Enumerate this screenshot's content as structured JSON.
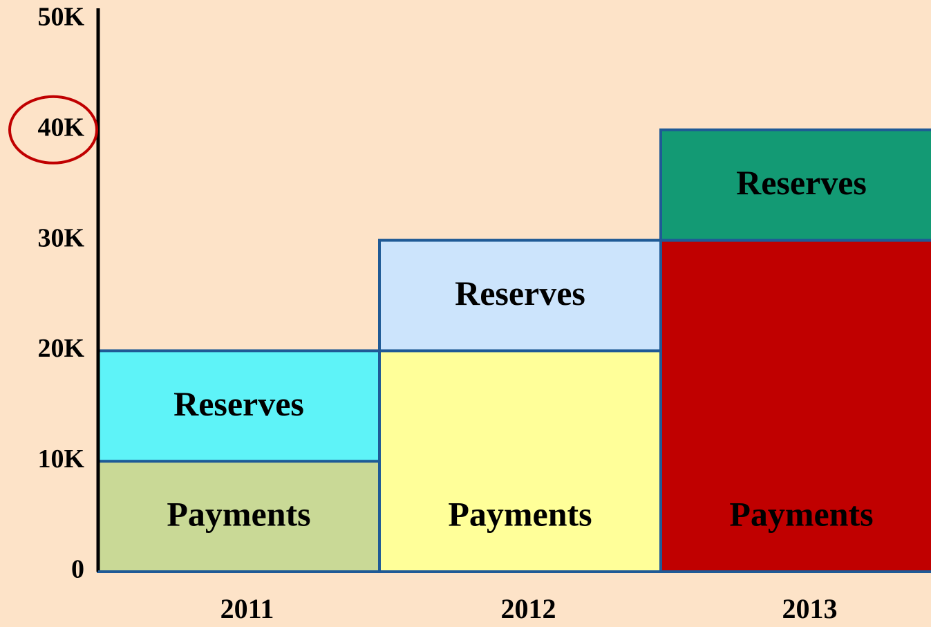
{
  "chart_data": {
    "type": "stacked_bar",
    "categories": [
      "2011",
      "2012",
      "2013"
    ],
    "series": [
      {
        "name": "Payments",
        "colors": [
          "#c9d996",
          "#ffff99",
          "#c00000"
        ],
        "values": [
          10000,
          20000,
          30000
        ]
      },
      {
        "name": "Reserves",
        "colors": [
          "#5ef3f8",
          "#cce4fc",
          "#139a74"
        ],
        "values": [
          10000,
          10000,
          10000
        ]
      }
    ],
    "ylim": [
      0,
      50000
    ],
    "yticks": [
      0,
      {
        "value": 10000,
        "label": "10K"
      },
      {
        "value": 20000,
        "label": "20K"
      },
      {
        "value": 30000,
        "label": "30K"
      },
      {
        "value": 40000,
        "label": "40K"
      },
      {
        "value": 50000,
        "label": "50K"
      }
    ],
    "highlight_tick": 40000,
    "grid": false
  }
}
